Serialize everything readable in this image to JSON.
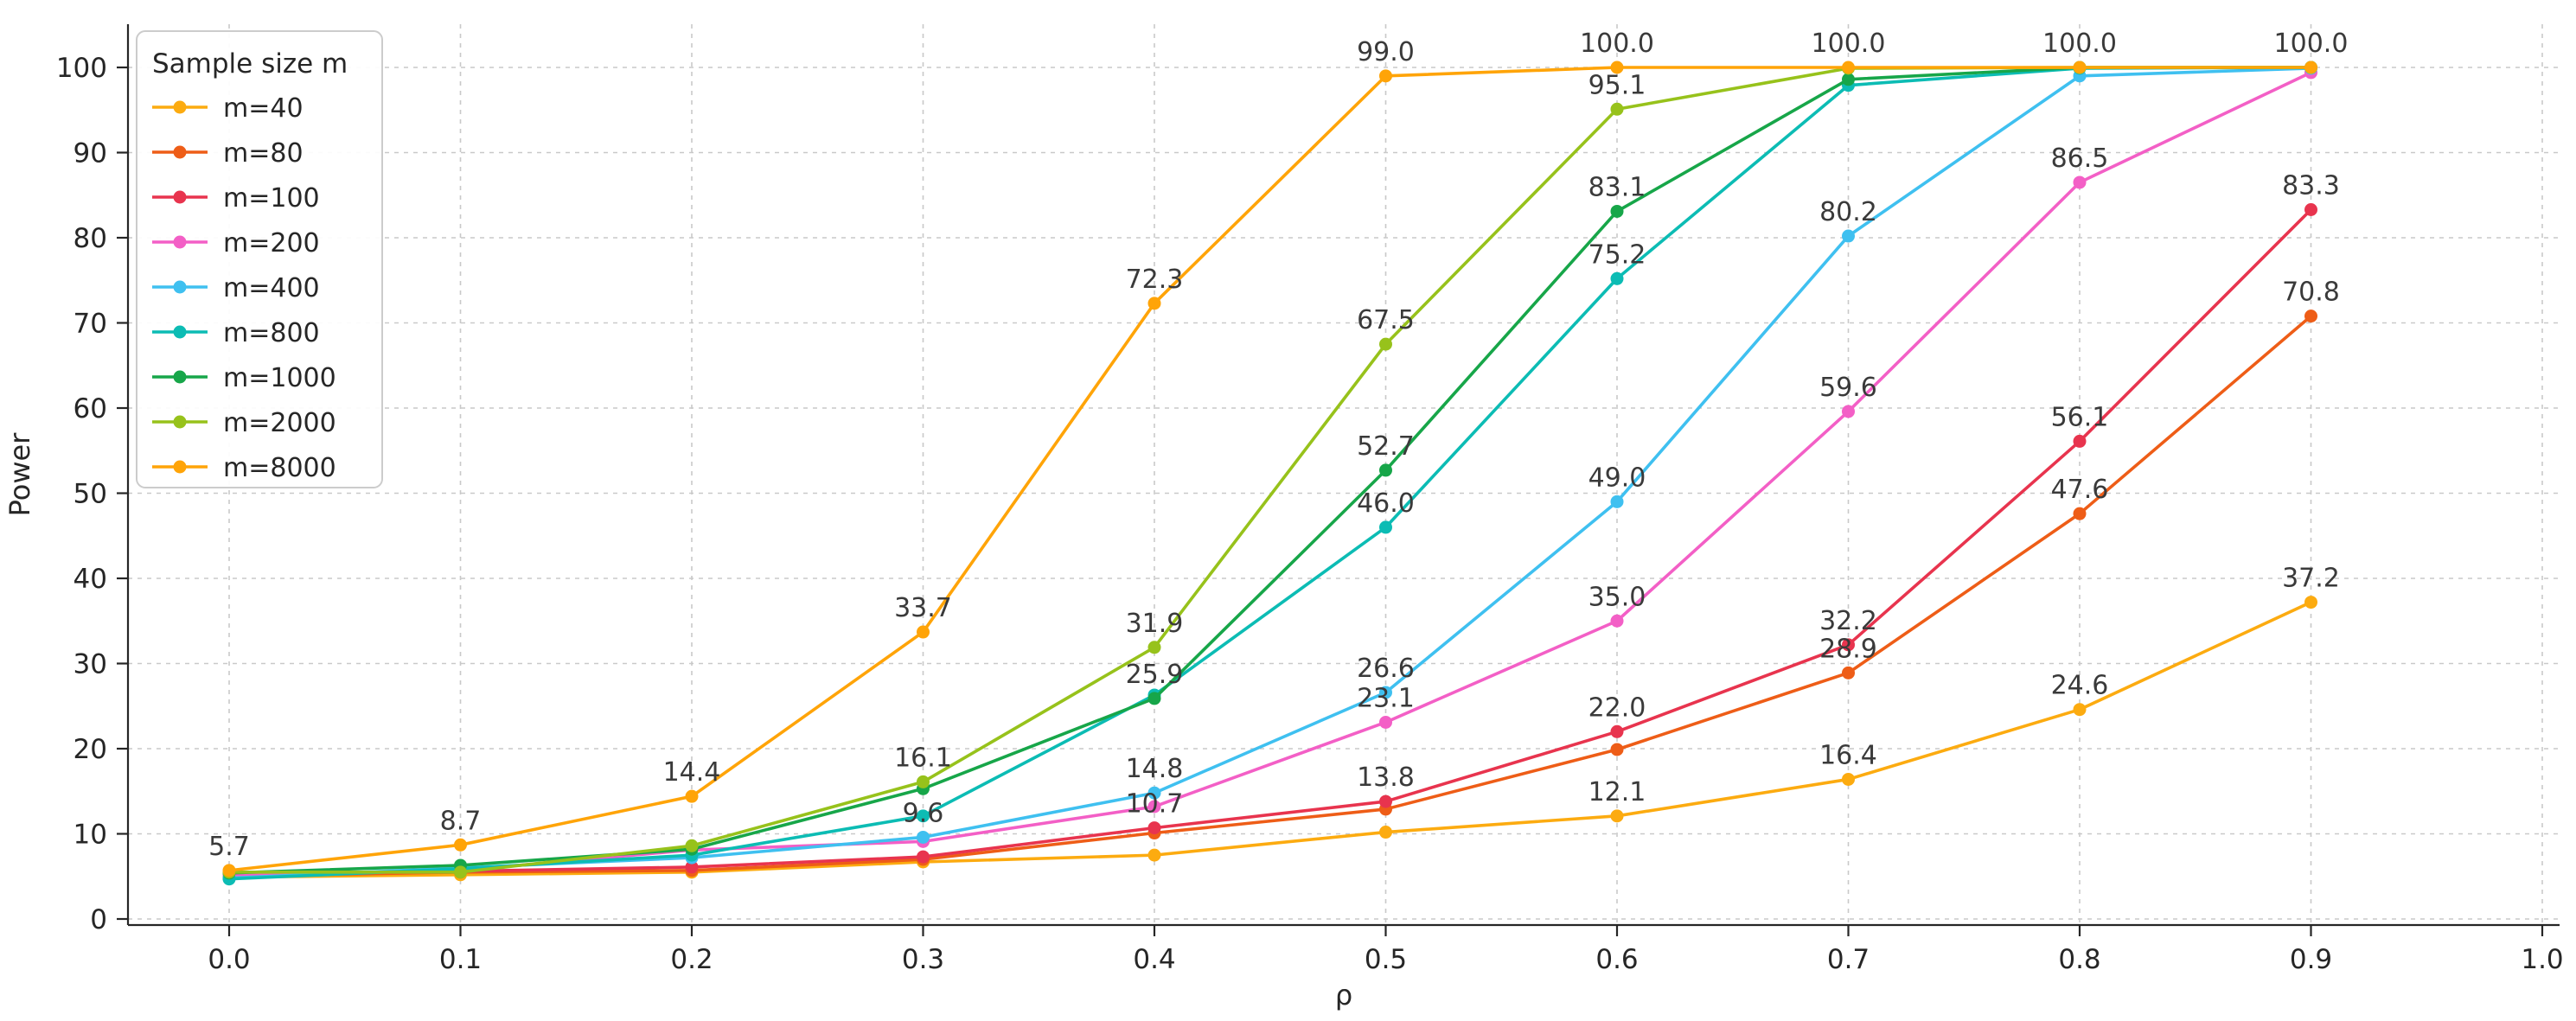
{
  "chart_data": {
    "type": "line",
    "title": "",
    "xlabel": "ρ",
    "ylabel": "Power",
    "grid": "dashed",
    "xlim": [
      -0.044,
      1.007
    ],
    "ylim": [
      0,
      105
    ],
    "x": [
      0.0,
      0.1,
      0.2,
      0.3,
      0.4,
      0.5,
      0.6,
      0.7,
      0.8,
      0.9
    ],
    "x_ticks": [
      {
        "value": 0.0,
        "label": "0.0"
      },
      {
        "value": 0.1,
        "label": "0.1"
      },
      {
        "value": 0.2,
        "label": "0.2"
      },
      {
        "value": 0.3,
        "label": "0.3"
      },
      {
        "value": 0.4,
        "label": "0.4"
      },
      {
        "value": 0.5,
        "label": "0.5"
      },
      {
        "value": 0.6,
        "label": "0.6"
      },
      {
        "value": 0.7,
        "label": "0.7"
      },
      {
        "value": 0.8,
        "label": "0.8"
      },
      {
        "value": 0.9,
        "label": "0.9"
      },
      {
        "value": 1.0,
        "label": "1.0"
      }
    ],
    "y_ticks": [
      0,
      10,
      20,
      30,
      40,
      50,
      60,
      70,
      80,
      90,
      100
    ],
    "legend": {
      "title": "Sample size m",
      "position": "upper left"
    },
    "series": [
      {
        "name": "m=40",
        "color": "#fcab10",
        "values": [
          4.9,
          5.2,
          5.5,
          6.7,
          7.5,
          10.2,
          12.1,
          16.4,
          24.6,
          37.2
        ],
        "point_labels": [
          null,
          null,
          null,
          null,
          null,
          null,
          "12.1",
          "16.4",
          "24.6",
          "37.2"
        ]
      },
      {
        "name": "m=80",
        "color": "#ee5d17",
        "values": [
          5.0,
          5.5,
          5.7,
          7.0,
          10.1,
          12.9,
          19.9,
          28.9,
          47.6,
          70.8
        ],
        "point_labels": [
          null,
          null,
          null,
          null,
          null,
          null,
          null,
          "28.9",
          "47.6",
          "70.8"
        ]
      },
      {
        "name": "m=100",
        "color": "#e8344e",
        "values": [
          5.3,
          5.6,
          6.1,
          7.3,
          10.7,
          13.8,
          22.0,
          32.2,
          56.1,
          83.3
        ],
        "point_labels": [
          null,
          null,
          null,
          null,
          "10.7",
          "13.8",
          "22.0",
          "32.2",
          "56.1",
          "83.3"
        ]
      },
      {
        "name": "m=200",
        "color": "#f35fc6",
        "values": [
          5.1,
          5.7,
          8.1,
          9.1,
          13.2,
          23.1,
          35.0,
          59.6,
          86.5,
          99.4
        ],
        "point_labels": [
          null,
          null,
          null,
          null,
          null,
          "23.1",
          "35.0",
          "59.6",
          "86.5",
          null
        ]
      },
      {
        "name": "m=400",
        "color": "#3fc0f0",
        "values": [
          4.8,
          6.0,
          7.2,
          9.6,
          14.8,
          26.6,
          49.0,
          80.2,
          99.0,
          99.9
        ],
        "point_labels": [
          null,
          null,
          null,
          "9.6",
          "14.8",
          "26.6",
          "49.0",
          "80.2",
          null,
          null
        ]
      },
      {
        "name": "m=800",
        "color": "#0cbcb4",
        "values": [
          4.7,
          5.9,
          7.5,
          12.1,
          26.3,
          46.0,
          75.2,
          97.9,
          99.9,
          100.0
        ],
        "point_labels": [
          null,
          null,
          null,
          null,
          null,
          "46.0",
          "75.2",
          null,
          null,
          null
        ]
      },
      {
        "name": "m=1000",
        "color": "#17a649",
        "values": [
          5.4,
          6.3,
          8.2,
          15.3,
          25.9,
          52.7,
          83.1,
          98.6,
          100.0,
          100.0
        ],
        "point_labels": [
          null,
          null,
          null,
          null,
          "25.9",
          "52.7",
          "83.1",
          null,
          null,
          null
        ]
      },
      {
        "name": "m=2000",
        "color": "#97c21b",
        "values": [
          5.5,
          5.5,
          8.6,
          16.1,
          31.9,
          67.5,
          95.1,
          99.9,
          100.0,
          100.0
        ],
        "point_labels": [
          null,
          null,
          null,
          "16.1",
          "31.9",
          "67.5",
          "95.1",
          null,
          null,
          null
        ]
      },
      {
        "name": "m=8000",
        "color": "#ffa408",
        "values": [
          5.7,
          8.7,
          14.4,
          33.7,
          72.3,
          99.0,
          100.0,
          100.0,
          100.0,
          100.0
        ],
        "point_labels": [
          "5.7",
          "8.7",
          "14.4",
          "33.7",
          "72.3",
          "99.0",
          "100.0",
          "100.0",
          "100.0",
          "100.0"
        ]
      }
    ]
  }
}
